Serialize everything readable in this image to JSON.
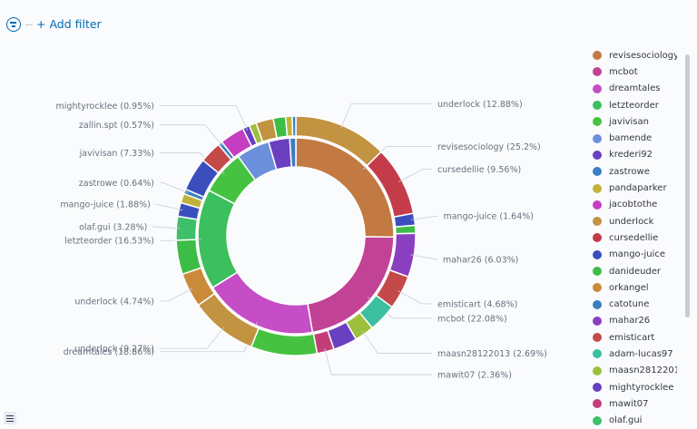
{
  "filterbar": {
    "add_filter_label": "+ Add filter",
    "filter_icon": "filter-icon",
    "accent": "#006bb4"
  },
  "legend": {
    "items": [
      {
        "label": "revisesociology",
        "color": "#c27a42"
      },
      {
        "label": "mcbot",
        "color": "#c24395"
      },
      {
        "label": "dreamtales",
        "color": "#c54dc5"
      },
      {
        "label": "letzteorder",
        "color": "#3cbf5e"
      },
      {
        "label": "javivisan",
        "color": "#45c340"
      },
      {
        "label": "bamende",
        "color": "#6b8fdb"
      },
      {
        "label": "krederi92",
        "color": "#6a3fc0"
      },
      {
        "label": "zastrowe",
        "color": "#3b7fc4"
      },
      {
        "label": "pandaparker",
        "color": "#c2b13a"
      },
      {
        "label": "jacobtothe",
        "color": "#c53ec2"
      },
      {
        "label": "underlock",
        "color": "#c29340"
      },
      {
        "label": "cursedellie",
        "color": "#c43c4a"
      },
      {
        "label": "mango-juice",
        "color": "#3a4fbd"
      },
      {
        "label": "danideuder",
        "color": "#3dbd45"
      },
      {
        "label": "orkangel",
        "color": "#c98a3a"
      },
      {
        "label": "catotune",
        "color": "#3a7fbd"
      },
      {
        "label": "mahar26",
        "color": "#8a3fc0"
      },
      {
        "label": "emisticart",
        "color": "#c44a4a"
      },
      {
        "label": "adam-lucas97",
        "color": "#3cbfa0"
      },
      {
        "label": "maasn28122013",
        "color": "#9cc03e"
      },
      {
        "label": "mightyrocklee",
        "color": "#6a3fc0"
      },
      {
        "label": "mawit07",
        "color": "#c23e78"
      },
      {
        "label": "olaf.gui",
        "color": "#3ebf6a"
      }
    ]
  },
  "chart_data": {
    "type": "pie",
    "inner_ring": [
      {
        "name": "revisesociology",
        "value": 25.2,
        "color": "#c27a42",
        "label": "revisesociology (25.2%)"
      },
      {
        "name": "mcbot",
        "value": 22.08,
        "color": "#c24395",
        "label": "mcbot (22.08%)"
      },
      {
        "name": "dreamtales",
        "value": 18.86,
        "color": "#c54dc5",
        "label": "dreamtales (18.86%)"
      },
      {
        "name": "letzteorder",
        "value": 16.53,
        "color": "#3cbf5e",
        "label": "letzteorder (16.53%)"
      },
      {
        "name": "javivisan",
        "value": 7.33,
        "color": "#45c340",
        "label": "javivisan (7.33%)"
      },
      {
        "name": "bamende",
        "value": 5.5,
        "color": "#6b8fdb",
        "label": ""
      },
      {
        "name": "krederi92",
        "value": 3.5,
        "color": "#6a3fc0",
        "label": ""
      },
      {
        "name": "zastrowe",
        "value": 1.0,
        "color": "#3b7fc4",
        "label": ""
      }
    ],
    "outer_ring": [
      {
        "name": "underlock",
        "value": 12.88,
        "color": "#c29340",
        "label": "underlock (12.88%)"
      },
      {
        "name": "cursedellie",
        "value": 9.56,
        "color": "#c43c4a",
        "label": "cursedellie (9.56%)"
      },
      {
        "name": "mango-juice",
        "value": 1.64,
        "color": "#3a4fbd",
        "label": "mango-juice (1.64%)"
      },
      {
        "name": "danideuder",
        "value": 1.1,
        "color": "#3dbd45",
        "label": ""
      },
      {
        "name": "mahar26",
        "value": 6.03,
        "color": "#8a3fc0",
        "label": "mahar26 (6.03%)"
      },
      {
        "name": "emisticart",
        "value": 4.68,
        "color": "#c44a4a",
        "label": "emisticart (4.68%)"
      },
      {
        "name": "adam-lucas97",
        "value": 3.9,
        "color": "#3cbfa0",
        "label": ""
      },
      {
        "name": "maasn28122013",
        "value": 2.69,
        "color": "#9cc03e",
        "label": "maasn28122013 (2.69%)"
      },
      {
        "name": "krederi92",
        "value": 3.3,
        "color": "#6a3fc0",
        "label": ""
      },
      {
        "name": "mawit07",
        "value": 2.36,
        "color": "#c23e78",
        "label": "mawit07 (2.36%)"
      },
      {
        "name": "javivisan",
        "value": 9.1,
        "color": "#45c340",
        "label": ""
      },
      {
        "name": "underlock",
        "value": 9.27,
        "color": "#c29340",
        "label": "underlock (9.27%)"
      },
      {
        "name": "underlock",
        "value": 4.74,
        "color": "#c98a3a",
        "label": "underlock (4.74%)"
      },
      {
        "name": "letzteorder",
        "value": 4.7,
        "color": "#3dbd45",
        "label": ""
      },
      {
        "name": "olaf.gui",
        "value": 3.28,
        "color": "#3ebf6a",
        "label": "olaf.gui (3.28%)"
      },
      {
        "name": "mango-juice",
        "value": 1.88,
        "color": "#3a4fbd",
        "label": "mango-juice (1.88%)"
      },
      {
        "name": "pandaparker",
        "value": 1.3,
        "color": "#c2b13a",
        "label": ""
      },
      {
        "name": "zastrowe",
        "value": 0.64,
        "color": "#3b7fc4",
        "label": "zastrowe (0.64%)"
      },
      {
        "name": "mango-juice",
        "value": 4.6,
        "color": "#3a4fbd",
        "label": ""
      },
      {
        "name": "emisticart",
        "value": 3.0,
        "color": "#c44a4a",
        "label": ""
      },
      {
        "name": "zallin.spt",
        "value": 0.57,
        "color": "#3b7fc4",
        "label": "zallin.spt (0.57%)"
      },
      {
        "name": "jacobtothe",
        "value": 3.4,
        "color": "#c53ec2",
        "label": ""
      },
      {
        "name": "mightyrocklee",
        "value": 0.95,
        "color": "#6a3fc0",
        "label": "mightyrocklee (0.95%)"
      },
      {
        "name": "pandaparker",
        "value": 1.0,
        "color": "#9cc03e",
        "label": ""
      },
      {
        "name": "underlock",
        "value": 2.4,
        "color": "#c29340",
        "label": ""
      },
      {
        "name": "danideuder",
        "value": 1.7,
        "color": "#3dbd45",
        "label": ""
      },
      {
        "name": "orkangel",
        "value": 0.9,
        "color": "#c2b13a",
        "label": ""
      },
      {
        "name": "zastrowe",
        "value": 0.5,
        "color": "#3b7fc4",
        "label": ""
      }
    ]
  }
}
